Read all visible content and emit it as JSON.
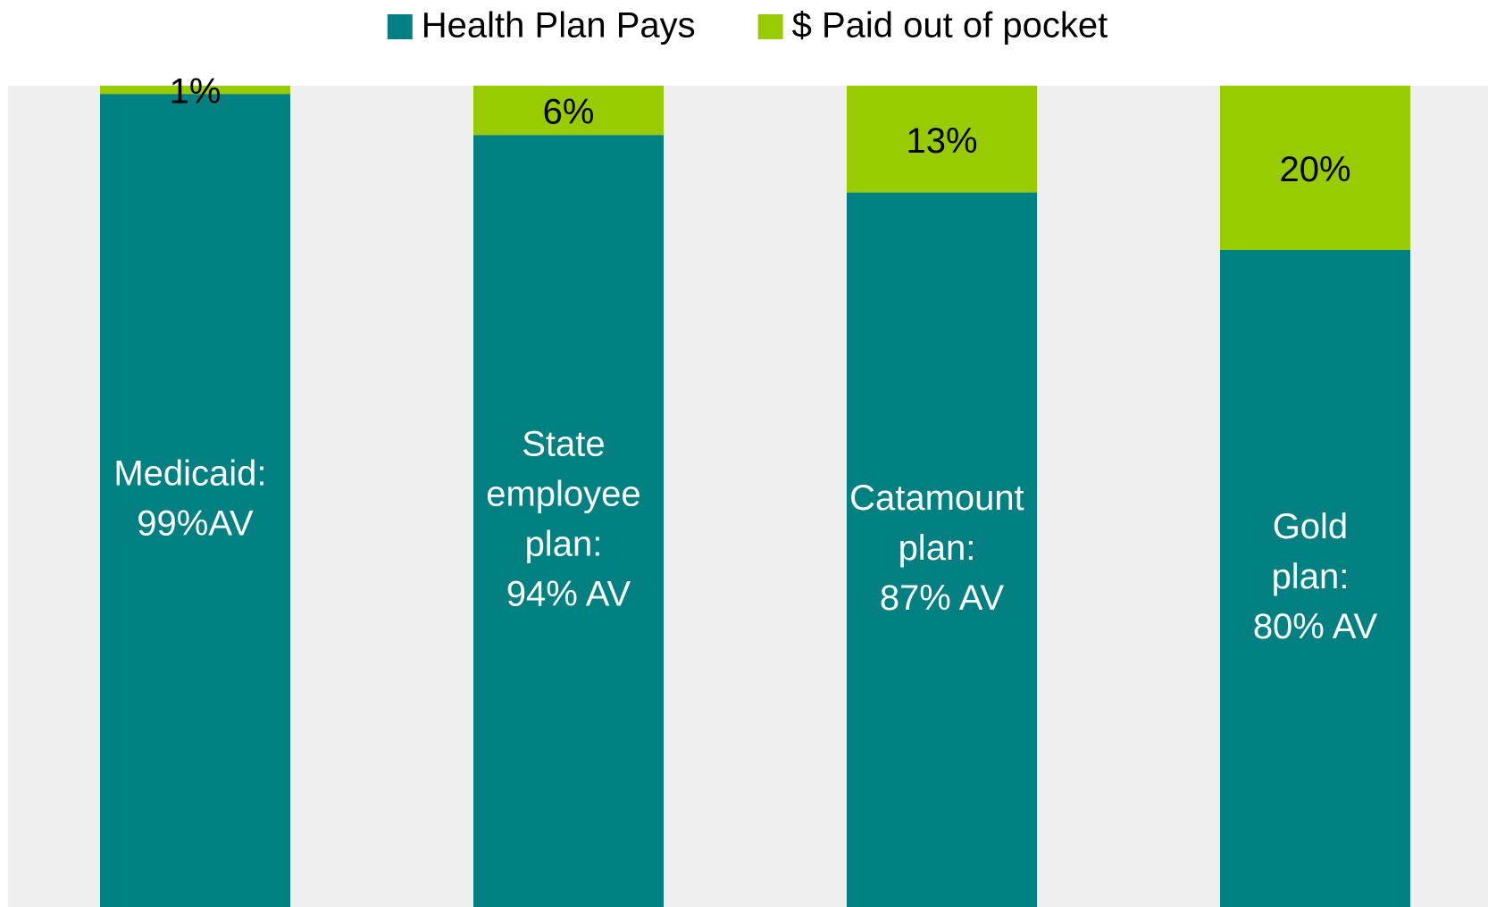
{
  "chart_data": {
    "type": "stacked_bar",
    "categories": [
      null,
      null,
      null,
      null
    ],
    "series": [
      {
        "name": "Health Plan Pays",
        "color": "#008080",
        "values": [
          99,
          94,
          87,
          80
        ],
        "value_labels": [
          "Medicaid: 99%AV",
          "State employee plan: 94% AV",
          "Catamount plan: 87% AV",
          "Gold plan: 80% AV"
        ]
      },
      {
        "name": "$ Paid out of pocket",
        "color": "#99cc00",
        "values": [
          1,
          6,
          13,
          20
        ],
        "value_labels": [
          "1%",
          "6%",
          "13%",
          "20%"
        ]
      }
    ],
    "ylim": [
      0,
      100
    ],
    "plot_background": "#efefef",
    "legend": "top"
  }
}
